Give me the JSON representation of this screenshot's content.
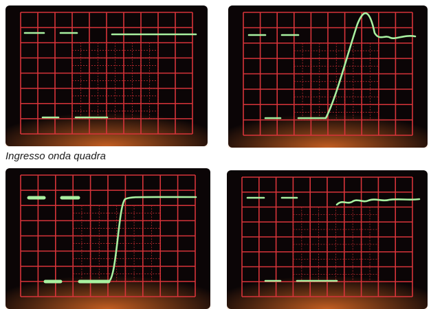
{
  "caption": "Ingresso onda quadra"
}
